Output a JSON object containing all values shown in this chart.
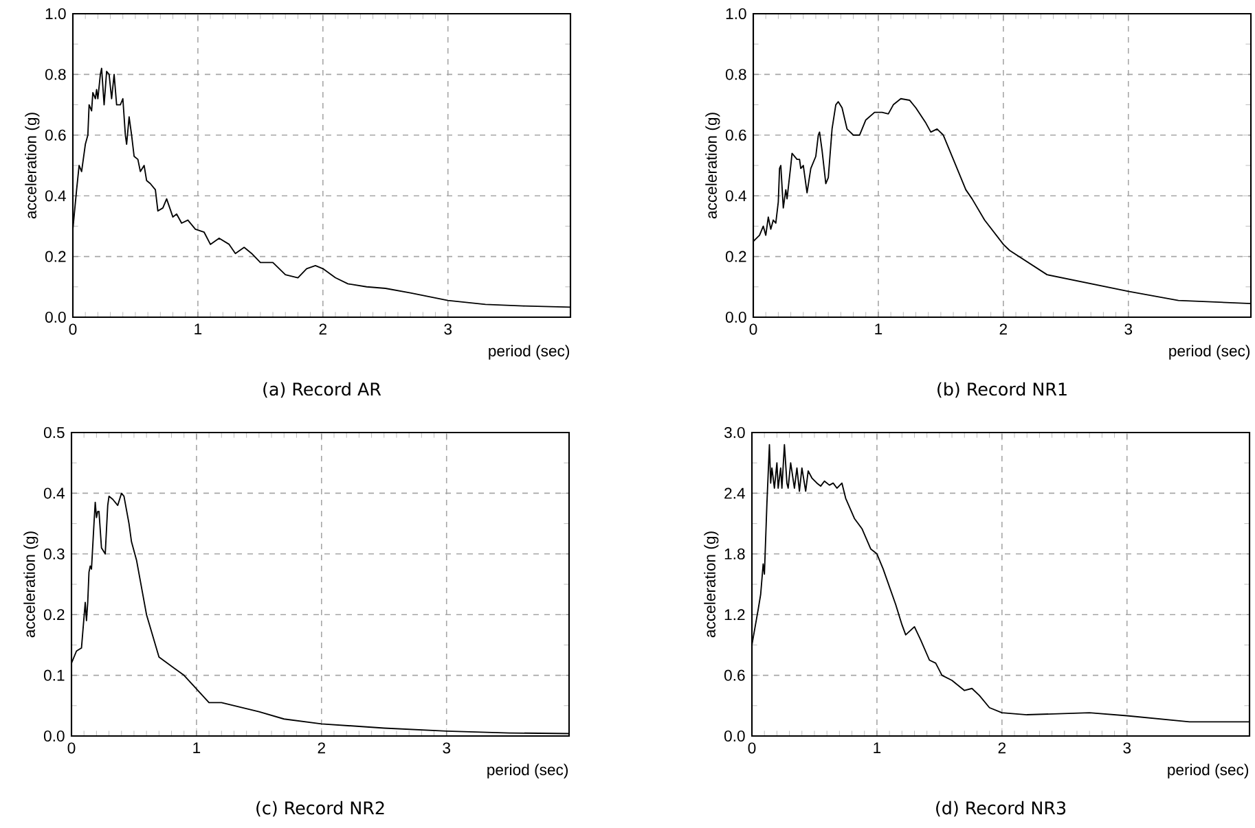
{
  "chart_data": [
    {
      "type": "line",
      "title": "(a) Record AR",
      "xlabel": "period (sec)",
      "ylabel": "acceleration (g)",
      "color": "#000000",
      "grid": true,
      "xlim": [
        0,
        3.98
      ],
      "ylim": [
        0,
        1.0
      ],
      "xticks": [
        0,
        1,
        2,
        3
      ],
      "yticks": [
        {
          "value": 0,
          "label": "0.0"
        },
        {
          "value": 0.2,
          "label": "0.2"
        },
        {
          "value": 0.4,
          "label": "0.4"
        },
        {
          "value": 0.6,
          "label": "0.6"
        },
        {
          "value": 0.8,
          "label": "0.8"
        },
        {
          "value": 1.0,
          "label": "1.0"
        }
      ],
      "x": [
        0,
        0.03,
        0.05,
        0.07,
        0.1,
        0.12,
        0.13,
        0.15,
        0.16,
        0.18,
        0.19,
        0.2,
        0.22,
        0.23,
        0.25,
        0.27,
        0.29,
        0.31,
        0.33,
        0.35,
        0.38,
        0.4,
        0.42,
        0.43,
        0.45,
        0.47,
        0.49,
        0.52,
        0.54,
        0.57,
        0.59,
        0.62,
        0.64,
        0.66,
        0.68,
        0.72,
        0.75,
        0.8,
        0.83,
        0.87,
        0.92,
        0.98,
        1.05,
        1.1,
        1.17,
        1.25,
        1.3,
        1.37,
        1.43,
        1.5,
        1.6,
        1.7,
        1.8,
        1.87,
        1.94,
        2.0,
        2.1,
        2.2,
        2.35,
        2.5,
        2.7,
        3.0,
        3.3,
        3.6,
        3.98
      ],
      "values": [
        0.29,
        0.42,
        0.5,
        0.48,
        0.57,
        0.6,
        0.7,
        0.68,
        0.74,
        0.72,
        0.75,
        0.72,
        0.8,
        0.82,
        0.7,
        0.81,
        0.8,
        0.72,
        0.8,
        0.7,
        0.7,
        0.72,
        0.6,
        0.57,
        0.66,
        0.6,
        0.53,
        0.52,
        0.48,
        0.5,
        0.45,
        0.44,
        0.43,
        0.42,
        0.35,
        0.36,
        0.39,
        0.33,
        0.34,
        0.31,
        0.32,
        0.29,
        0.28,
        0.24,
        0.26,
        0.24,
        0.21,
        0.23,
        0.21,
        0.18,
        0.18,
        0.14,
        0.13,
        0.16,
        0.17,
        0.16,
        0.13,
        0.11,
        0.1,
        0.095,
        0.08,
        0.055,
        0.042,
        0.037,
        0.033
      ]
    },
    {
      "type": "line",
      "title": "(b) Record NR1",
      "xlabel": "period (sec)",
      "ylabel": "acceleration (g)",
      "color": "#000000",
      "grid": true,
      "xlim": [
        0,
        3.98
      ],
      "ylim": [
        0,
        1.0
      ],
      "xticks": [
        0,
        1,
        2,
        3
      ],
      "yticks": [
        {
          "value": 0,
          "label": "0.0"
        },
        {
          "value": 0.2,
          "label": "0.2"
        },
        {
          "value": 0.4,
          "label": "0.4"
        },
        {
          "value": 0.6,
          "label": "0.6"
        },
        {
          "value": 0.8,
          "label": "0.8"
        },
        {
          "value": 1.0,
          "label": "1.0"
        }
      ],
      "x": [
        0,
        0.05,
        0.08,
        0.1,
        0.12,
        0.14,
        0.16,
        0.18,
        0.2,
        0.21,
        0.22,
        0.24,
        0.26,
        0.27,
        0.3,
        0.31,
        0.35,
        0.37,
        0.38,
        0.4,
        0.42,
        0.43,
        0.46,
        0.5,
        0.52,
        0.53,
        0.55,
        0.58,
        0.6,
        0.63,
        0.66,
        0.68,
        0.71,
        0.75,
        0.8,
        0.85,
        0.9,
        0.97,
        1.03,
        1.08,
        1.12,
        1.18,
        1.25,
        1.3,
        1.38,
        1.42,
        1.47,
        1.52,
        1.6,
        1.7,
        1.75,
        1.85,
        2.0,
        2.05,
        2.35,
        3.0,
        3.4,
        3.98
      ],
      "values": [
        0.25,
        0.27,
        0.3,
        0.27,
        0.33,
        0.29,
        0.32,
        0.31,
        0.38,
        0.49,
        0.5,
        0.36,
        0.42,
        0.39,
        0.5,
        0.54,
        0.52,
        0.52,
        0.49,
        0.5,
        0.44,
        0.41,
        0.49,
        0.53,
        0.6,
        0.61,
        0.55,
        0.44,
        0.46,
        0.62,
        0.7,
        0.71,
        0.69,
        0.62,
        0.6,
        0.6,
        0.65,
        0.675,
        0.675,
        0.67,
        0.7,
        0.72,
        0.715,
        0.69,
        0.64,
        0.61,
        0.62,
        0.6,
        0.52,
        0.42,
        0.39,
        0.32,
        0.24,
        0.22,
        0.14,
        0.085,
        0.055,
        0.045
      ]
    },
    {
      "type": "line",
      "title": "(c) Record NR2",
      "xlabel": "period (sec)",
      "ylabel": "acceleration (g)",
      "color": "#000000",
      "grid": true,
      "xlim": [
        0,
        3.98
      ],
      "ylim": [
        0,
        0.5
      ],
      "xticks": [
        0,
        1,
        2,
        3
      ],
      "yticks": [
        {
          "value": 0,
          "label": "0.0"
        },
        {
          "value": 0.1,
          "label": "0.1"
        },
        {
          "value": 0.2,
          "label": "0.2"
        },
        {
          "value": 0.3,
          "label": "0.3"
        },
        {
          "value": 0.4,
          "label": "0.4"
        },
        {
          "value": 0.5,
          "label": "0.5"
        }
      ],
      "x": [
        0,
        0.04,
        0.08,
        0.11,
        0.12,
        0.13,
        0.14,
        0.15,
        0.16,
        0.18,
        0.19,
        0.2,
        0.21,
        0.22,
        0.24,
        0.27,
        0.29,
        0.3,
        0.33,
        0.37,
        0.4,
        0.42,
        0.46,
        0.48,
        0.52,
        0.6,
        0.7,
        0.9,
        1.1,
        1.2,
        1.5,
        1.7,
        2.0,
        2.5,
        3.0,
        3.5,
        3.98
      ],
      "values": [
        0.12,
        0.14,
        0.145,
        0.22,
        0.19,
        0.22,
        0.27,
        0.28,
        0.275,
        0.35,
        0.385,
        0.36,
        0.37,
        0.37,
        0.31,
        0.3,
        0.38,
        0.395,
        0.39,
        0.38,
        0.4,
        0.395,
        0.35,
        0.32,
        0.29,
        0.2,
        0.13,
        0.1,
        0.055,
        0.055,
        0.04,
        0.028,
        0.02,
        0.013,
        0.008,
        0.005,
        0.004
      ]
    },
    {
      "type": "line",
      "title": "(d) Record NR3",
      "xlabel": "period (sec)",
      "ylabel": "acceleration (g)",
      "color": "#000000",
      "grid": true,
      "xlim": [
        0,
        3.98
      ],
      "ylim": [
        0,
        3.0
      ],
      "xticks": [
        0,
        1,
        2,
        3
      ],
      "yticks": [
        {
          "value": 0,
          "label": "0.0"
        },
        {
          "value": 0.6,
          "label": "0.6"
        },
        {
          "value": 1.2,
          "label": "1.2"
        },
        {
          "value": 1.8,
          "label": "1.8"
        },
        {
          "value": 2.4,
          "label": "2.4"
        },
        {
          "value": 3.0,
          "label": "3.0"
        }
      ],
      "x": [
        0,
        0.05,
        0.07,
        0.09,
        0.1,
        0.12,
        0.14,
        0.15,
        0.16,
        0.18,
        0.2,
        0.21,
        0.23,
        0.24,
        0.26,
        0.28,
        0.29,
        0.31,
        0.34,
        0.36,
        0.38,
        0.4,
        0.43,
        0.45,
        0.48,
        0.52,
        0.55,
        0.58,
        0.62,
        0.65,
        0.68,
        0.72,
        0.75,
        0.82,
        0.88,
        0.95,
        1.0,
        1.05,
        1.15,
        1.2,
        1.23,
        1.3,
        1.35,
        1.42,
        1.47,
        1.52,
        1.6,
        1.7,
        1.76,
        1.82,
        1.9,
        2.0,
        2.2,
        2.7,
        3.0,
        3.5,
        3.98
      ],
      "values": [
        0.9,
        1.25,
        1.4,
        1.7,
        1.6,
        2.3,
        2.88,
        2.5,
        2.65,
        2.45,
        2.7,
        2.45,
        2.65,
        2.45,
        2.88,
        2.5,
        2.45,
        2.7,
        2.45,
        2.65,
        2.42,
        2.65,
        2.42,
        2.62,
        2.55,
        2.5,
        2.47,
        2.52,
        2.48,
        2.5,
        2.45,
        2.5,
        2.35,
        2.15,
        2.05,
        1.85,
        1.8,
        1.65,
        1.3,
        1.1,
        1.0,
        1.08,
        0.95,
        0.75,
        0.72,
        0.6,
        0.55,
        0.45,
        0.47,
        0.4,
        0.28,
        0.23,
        0.21,
        0.23,
        0.2,
        0.14,
        0.14
      ]
    }
  ]
}
